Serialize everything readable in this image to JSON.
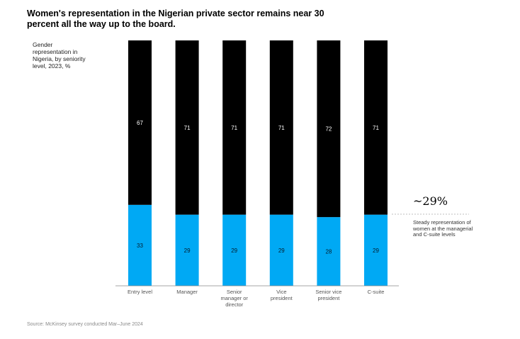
{
  "title": "Women's representation in the Nigerian private sector remains near 30 percent all the way up to the board.",
  "subtitle": "Gender representation in Nigeria, by seniority level, 2023, %",
  "annotation": {
    "value": "~29%",
    "text": "Steady representation of women at the managerial and C-suite levels"
  },
  "source": "Source: McKinsey survey conducted Mar–June 2024",
  "colors": {
    "men": "#000000",
    "women": "#00a9f4",
    "men_label": "#ffffff",
    "women_label": "#051c2c"
  },
  "chart_data": {
    "type": "bar",
    "stacked": true,
    "categories": [
      [
        "Entry level"
      ],
      [
        "Manager"
      ],
      [
        "Senior",
        "manager or",
        "director"
      ],
      [
        "Vice",
        "president"
      ],
      [
        "Senior vice",
        "president"
      ],
      [
        "C-suite"
      ]
    ],
    "series": [
      {
        "values": [
          33,
          29,
          29,
          29,
          28,
          29
        ],
        "color": "#00a9f4"
      },
      {
        "values": [
          67,
          71,
          71,
          71,
          72,
          71
        ],
        "color": "#000000"
      }
    ],
    "ylim": [
      0,
      100
    ],
    "grid": false,
    "legend": "none"
  }
}
